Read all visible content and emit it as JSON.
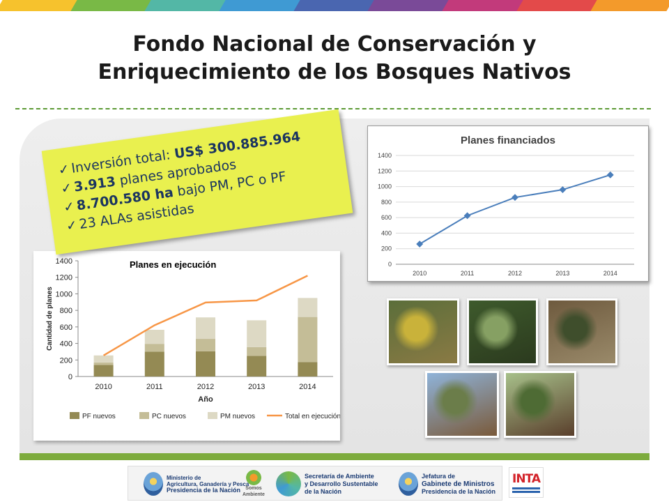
{
  "slide": {
    "title_line1": "Fondo Nacional de Conservación y",
    "title_line2": "Enriquecimiento de los Bosques Nativos",
    "accent_colors": [
      "#f6c22d",
      "#79b946",
      "#53b7a6",
      "#3f9ad3",
      "#4a66b0",
      "#7a4a98",
      "#c23a7b",
      "#e34a4a",
      "#f39a2b"
    ],
    "separator_color": "#5c9a35",
    "footer_bar_color": "#7dab3d"
  },
  "highlights": {
    "item1_prefix": "Inversión total: ",
    "item1_value": "US$ 300.885.964",
    "item2_value": "3.913",
    "item2_suffix": " planes aprobados",
    "item3_value": "8.700.580 ha",
    "item3_suffix": " bajo PM, PC o PF",
    "item4_text": "23 ALAs asistidas",
    "check": "✓"
  },
  "chart_data": [
    {
      "type": "line",
      "title": "Planes financiados",
      "x": [
        "2010",
        "2011",
        "2012",
        "2013",
        "2014"
      ],
      "series": [
        {
          "values": [
            260,
            625,
            860,
            960,
            1150
          ],
          "color": "#4a7ebb"
        }
      ],
      "ylim": [
        0,
        1400
      ],
      "yticks": [
        "0",
        "200",
        "400",
        "600",
        "800",
        "1000",
        "1200",
        "1400"
      ],
      "grid": true,
      "legend": "none"
    },
    {
      "type": "bar",
      "title": "Planes en ejecución",
      "xlabel": "Año",
      "ylabel": "Cantidad de planes",
      "categories": [
        "2010",
        "2011",
        "2012",
        "2013",
        "2014"
      ],
      "ylim": [
        0,
        1400
      ],
      "yticks": [
        "0",
        "200",
        "400",
        "600",
        "800",
        "1000",
        "1200",
        "1400"
      ],
      "stacked": true,
      "series": [
        {
          "name": "PF nuevos",
          "values": [
            140,
            300,
            305,
            250,
            175
          ],
          "color": "#948a54"
        },
        {
          "name": "PC nuevos",
          "values": [
            30,
            95,
            150,
            105,
            545
          ],
          "color": "#c4bd97"
        },
        {
          "name": "PM nuevos",
          "values": [
            85,
            170,
            260,
            325,
            230
          ],
          "color": "#ddd9c4"
        },
        {
          "name": "Total en ejecución",
          "values": [
            255,
            620,
            895,
            920,
            1220
          ],
          "color": "#f79646",
          "kind": "line"
        }
      ],
      "legend": "bottom"
    }
  ],
  "photos": [
    {
      "name": "fruit-photo",
      "colors": [
        "#5b6e3a",
        "#c9b23a",
        "#8a7a44"
      ]
    },
    {
      "name": "plant-photo",
      "colors": [
        "#3e5a2c",
        "#86a063",
        "#2b3a1e"
      ]
    },
    {
      "name": "seedlings-photo",
      "colors": [
        "#6e5a3e",
        "#3f4e2c",
        "#9a8a6a"
      ]
    },
    {
      "name": "logs-photo",
      "colors": [
        "#8fb3d9",
        "#6b7d4a",
        "#7a5a3a"
      ]
    },
    {
      "name": "forest-photo",
      "colors": [
        "#a7c08a",
        "#4e6b34",
        "#5a3f2c"
      ]
    }
  ],
  "footer": {
    "ministerio_line1": "Ministerio de",
    "ministerio_line2": "Agricultura, Ganadería y Pesca",
    "ministerio_line3": "Presidencia de la Nación",
    "somos_line1": "Somos",
    "somos_line2": "Ambiente",
    "secretaria_line1": "Secretaría de Ambiente",
    "secretaria_line2": "y Desarrollo Sustentable",
    "secretaria_line3": "de la Nación",
    "jefatura_line1": "Jefatura de",
    "jefatura_line2": "Gabinete de Ministros",
    "jefatura_line3": "Presidencia de la Nación",
    "inta": "INTA"
  }
}
